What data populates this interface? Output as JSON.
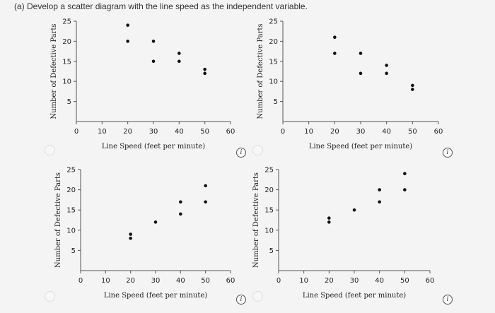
{
  "question": "(a) Develop a scatter diagram with the line speed as the independent variable.",
  "icons": {
    "info": "info-icon",
    "info_glyph": "i"
  },
  "chart_data": [
    {
      "type": "scatter",
      "xlabel": "Line Speed (feet per minute)",
      "ylabel": "Number of Defective Parts",
      "xlim": [
        0,
        60
      ],
      "ylim": [
        0,
        25
      ],
      "xticks": [
        0,
        10,
        20,
        30,
        40,
        50,
        60
      ],
      "yticks": [
        5,
        10,
        15,
        20,
        25
      ],
      "points": [
        [
          20,
          24
        ],
        [
          20,
          20
        ],
        [
          30,
          20
        ],
        [
          30,
          15
        ],
        [
          40,
          17
        ],
        [
          40,
          15
        ],
        [
          50,
          13
        ],
        [
          50,
          12
        ]
      ]
    },
    {
      "type": "scatter",
      "xlabel": "Line Speed (feet per minute)",
      "ylabel": "Number of Defective Parts",
      "xlim": [
        0,
        60
      ],
      "ylim": [
        0,
        25
      ],
      "xticks": [
        0,
        10,
        20,
        30,
        40,
        50,
        60
      ],
      "yticks": [
        5,
        10,
        15,
        20,
        25
      ],
      "points": [
        [
          20,
          21
        ],
        [
          20,
          17
        ],
        [
          30,
          17
        ],
        [
          30,
          12
        ],
        [
          40,
          14
        ],
        [
          40,
          12
        ],
        [
          50,
          9
        ],
        [
          50,
          8
        ]
      ]
    },
    {
      "type": "scatter",
      "xlabel": "Line Speed (feet per minute)",
      "ylabel": "Number of Defective Parts",
      "xlim": [
        0,
        60
      ],
      "ylim": [
        0,
        25
      ],
      "xticks": [
        0,
        10,
        20,
        30,
        40,
        50,
        60
      ],
      "yticks": [
        5,
        10,
        15,
        20,
        25
      ],
      "points": [
        [
          20,
          9
        ],
        [
          20,
          8
        ],
        [
          30,
          12
        ],
        [
          40,
          17
        ],
        [
          40,
          14
        ],
        [
          50,
          21
        ],
        [
          50,
          17
        ]
      ]
    },
    {
      "type": "scatter",
      "xlabel": "Line Speed (feet per minute)",
      "ylabel": "Number of Defective Parts",
      "xlim": [
        0,
        60
      ],
      "ylim": [
        0,
        25
      ],
      "xticks": [
        0,
        10,
        20,
        30,
        40,
        50,
        60
      ],
      "yticks": [
        5,
        10,
        15,
        20,
        25
      ],
      "points": [
        [
          20,
          13
        ],
        [
          20,
          12
        ],
        [
          30,
          15
        ],
        [
          40,
          20
        ],
        [
          40,
          17
        ],
        [
          50,
          24
        ],
        [
          50,
          20
        ]
      ]
    }
  ]
}
